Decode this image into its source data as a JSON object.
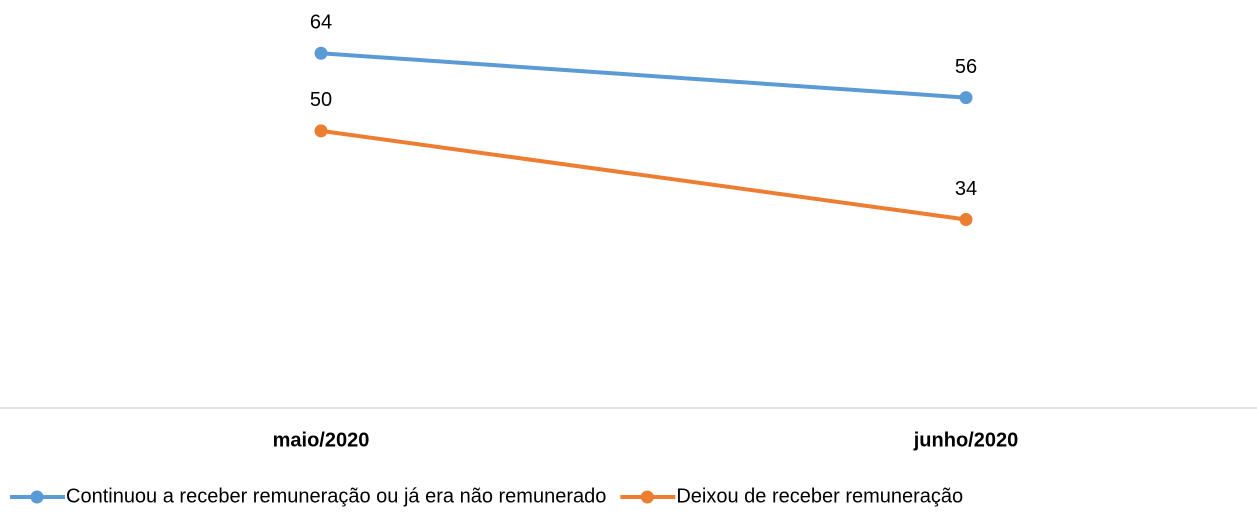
{
  "chart_data": {
    "type": "line",
    "categories": [
      "maio/2020",
      "junho/2020"
    ],
    "series": [
      {
        "name": "Continuou a receber remuneração ou já era não remunerado",
        "color": "#5b9bd5",
        "values": [
          64,
          56
        ]
      },
      {
        "name": "Deixou de receber remuneração",
        "color": "#ed7d31",
        "values": [
          50,
          34
        ]
      }
    ],
    "ylim": [
      0,
      70
    ],
    "legend": "bottom"
  }
}
